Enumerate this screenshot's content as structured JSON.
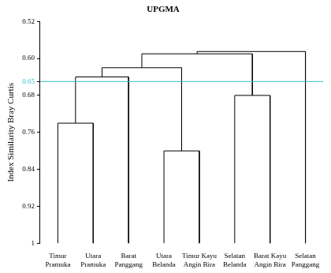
{
  "chart_data": {
    "type": "dendrogram",
    "title": "UPGMA",
    "y_label": "Index Similarity Bray Curtis",
    "leaves": [
      "Timur Pramuka",
      "Utara Pramuka",
      "Barat Panggang",
      "Utara Belanda",
      "Timur Kayu Angin Bira",
      "Selatan Belanda",
      "Barat Kayu Angin Bira",
      "Selatan Panggang"
    ],
    "merges": [
      {
        "left": 0,
        "right": 1,
        "height": 0.74
      },
      {
        "left": 3,
        "right": 4,
        "height": 0.8
      },
      {
        "left": 8,
        "right": 2,
        "height": 0.64
      },
      {
        "left": 5,
        "right": 6,
        "height": 0.68
      },
      {
        "left": 10,
        "right": 9,
        "height": 0.62
      },
      {
        "left": 12,
        "right": 11,
        "height": 0.59
      },
      {
        "left": 13,
        "right": 7,
        "height": 0.585
      }
    ],
    "color": "#000000",
    "ylim": [
      1,
      0.52
    ],
    "yticks": [
      0.52,
      {
        "value": 0.6,
        "label": "0.60"
      },
      0.68,
      0.76,
      0.84,
      0.92,
      1
    ],
    "reference_line": {
      "value": 0.65,
      "color": "#33bfd0"
    },
    "grid": false
  }
}
